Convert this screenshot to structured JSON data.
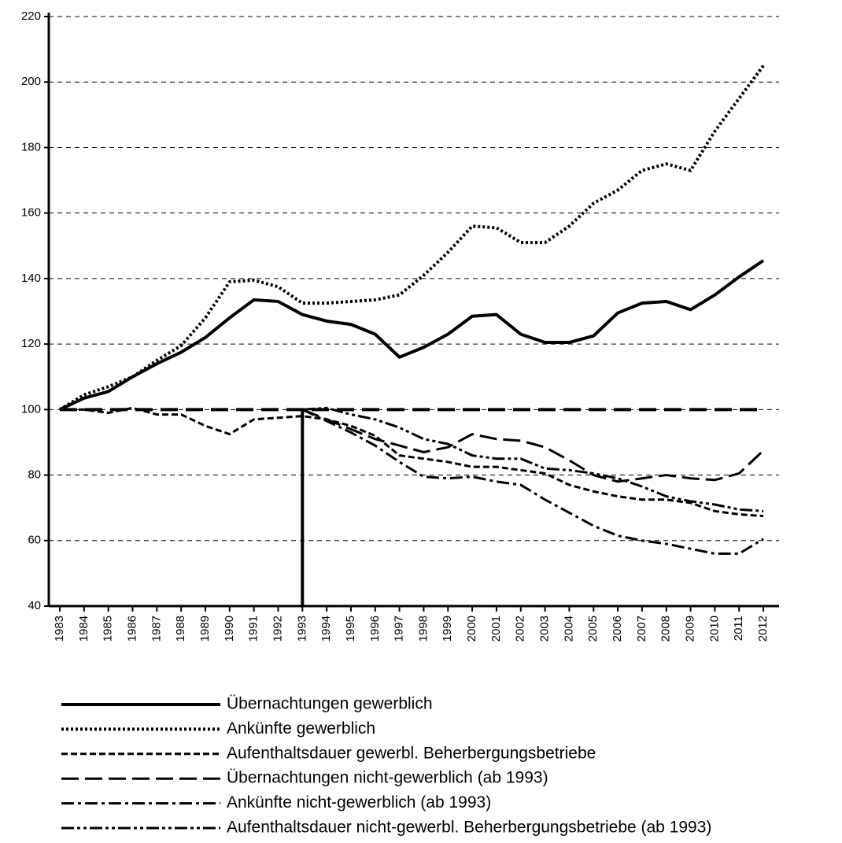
{
  "chart_data": {
    "type": "line",
    "categories": [
      "1983",
      "1984",
      "1985",
      "1986",
      "1987",
      "1988",
      "1989",
      "1990",
      "1991",
      "1992",
      "1993",
      "1994",
      "1995",
      "1996",
      "1997",
      "1998",
      "1999",
      "2000",
      "2001",
      "2002",
      "2003",
      "2004",
      "2005",
      "2006",
      "2007",
      "2008",
      "2009",
      "2010",
      "2011",
      "2012"
    ],
    "series": [
      {
        "name": "Übernachtungen gewerblich",
        "color": "#000000",
        "style": "solid",
        "values": [
          100,
          103.5,
          105.5,
          110,
          114,
          117.5,
          122,
          128,
          133.5,
          133,
          129,
          127,
          126,
          123,
          116,
          119,
          123,
          128.5,
          129,
          123,
          120.5,
          120.5,
          122.5,
          129.5,
          132.5,
          133,
          130.5,
          135,
          140.5,
          145.5
        ]
      },
      {
        "name": "Ankünfte gewerblich",
        "color": "#000000",
        "style": "dotted",
        "values": [
          100,
          104.5,
          107,
          110,
          115,
          119.5,
          128,
          139,
          139.5,
          137.5,
          132.5,
          132.5,
          133,
          133.5,
          135,
          141,
          148,
          156,
          155.5,
          151,
          151,
          156,
          163,
          167,
          173,
          175,
          173,
          185,
          195,
          205
        ]
      },
      {
        "name": "Aufenthaltsdauer gewerbl. Beherbergungsbetriebe",
        "color": "#000000",
        "style": "short-dash",
        "values": [
          100,
          100,
          99,
          100.5,
          98.5,
          98.5,
          95,
          92.5,
          97,
          97.5,
          98,
          97,
          95,
          92,
          86,
          85,
          84,
          82.5,
          82.5,
          81.5,
          80.5,
          77,
          75,
          73.5,
          72.5,
          72.5,
          71.5,
          69,
          68,
          67.5
        ]
      },
      {
        "name": "Übernachtungen nicht-gewerblich (ab 1993)",
        "color": "#000000",
        "style": "long-dash",
        "values": [
          null,
          null,
          null,
          null,
          null,
          null,
          null,
          null,
          null,
          null,
          100,
          97,
          94,
          91,
          89,
          87,
          88.5,
          92.5,
          91,
          90.5,
          88.5,
          84.5,
          80,
          78,
          79,
          80,
          79,
          78.5,
          80.5,
          87.5
        ]
      },
      {
        "name": "Ankünfte nicht-gewerblich (ab 1993)",
        "color": "#000000",
        "style": "dash-dot",
        "values": [
          null,
          null,
          null,
          null,
          null,
          null,
          null,
          null,
          null,
          null,
          100,
          96.5,
          93,
          89,
          84,
          79.5,
          79,
          79.5,
          78,
          77,
          72.5,
          68.5,
          64.5,
          61.5,
          60,
          59,
          57.5,
          56,
          56,
          60.5
        ]
      },
      {
        "name": "Aufenthaltsdauer nicht-gewerbl. Beherbergungsbetriebe (ab 1993)",
        "color": "#000000",
        "style": "dash-dot-dot",
        "values": [
          null,
          null,
          null,
          null,
          null,
          null,
          null,
          null,
          null,
          null,
          100,
          100.5,
          98.5,
          97,
          94.5,
          91,
          89.5,
          86,
          85,
          85,
          82,
          81.5,
          80.5,
          79,
          76.5,
          73.5,
          72,
          71,
          69.5,
          69
        ]
      }
    ],
    "ylim": [
      40,
      220
    ],
    "yticks": [
      40,
      60,
      80,
      100,
      120,
      140,
      160,
      180,
      200,
      220
    ],
    "grid": true,
    "reference_line": 100,
    "vertical_line": "1993"
  }
}
